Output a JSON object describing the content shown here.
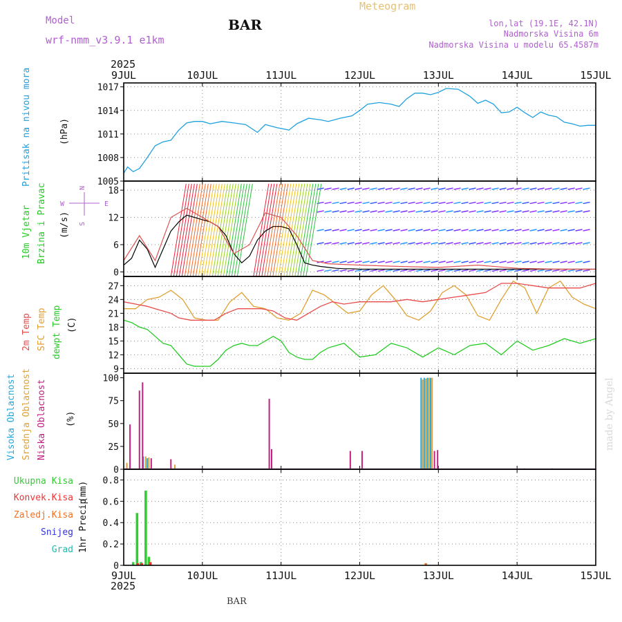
{
  "header": {
    "model_label": "Model",
    "model_name": "wrf-nmm_v3.9.1 e1km",
    "station": "BAR",
    "chart_title": "Meteogram",
    "lonlat": "lon,lat (19.1E, 42.1N)",
    "elevation": "Nadmorska Visina 6m",
    "model_elevation": "Nadmorska Visina u modelu 65.4587m",
    "footer_station": "BAR",
    "credit": "made by Angel"
  },
  "time_axis": {
    "year": "2025",
    "ticks": [
      "9JUL",
      "10JUL",
      "11JUL",
      "12JUL",
      "13JUL",
      "14JUL",
      "15JUL"
    ],
    "range_days": [
      0,
      6
    ]
  },
  "colors": {
    "pressure": "#1ea0e0",
    "wind_label": "#22cc22",
    "wind_speed": "#000000",
    "gust": "#e05050",
    "temp2m": "#e84a4a",
    "sfc": "#e0a030",
    "dewpt": "#22cc22",
    "high_cloud": "#20a8e0",
    "mid_cloud": "#e0a030",
    "low_cloud": "#c02080",
    "total_precip": "#33cc33",
    "conv_precip": "#ee3333",
    "frz_precip": "#f07020",
    "snow": "#3333dd",
    "hail": "#22bbaa",
    "dir_label": "#b060d0",
    "header_text": "#b060d0",
    "title_text": "#e8c070"
  },
  "chart_data": [
    {
      "type": "line",
      "panel": "pressure",
      "ylabel_main": "Pritisak na nivou mora",
      "ylabel_unit": "(hPa)",
      "ylim": [
        1005,
        1017.5
      ],
      "yticks": [
        1005,
        1008,
        1011,
        1014,
        1017
      ],
      "grid": true,
      "series": [
        {
          "x": [
            0,
            0.05,
            0.12,
            0.2,
            0.3,
            0.4,
            0.5,
            0.6,
            0.7,
            0.8,
            0.9,
            1.0,
            1.1,
            1.25,
            1.4,
            1.55,
            1.7,
            1.8,
            1.95,
            2.1,
            2.2,
            2.35,
            2.5,
            2.6,
            2.75,
            2.9,
            3.0,
            3.1,
            3.25,
            3.4,
            3.5,
            3.6,
            3.7,
            3.8,
            3.9,
            4.0,
            4.1,
            4.25,
            4.4,
            4.5,
            4.6,
            4.7,
            4.8,
            4.9,
            5.0,
            5.1,
            5.2,
            5.3,
            5.4,
            5.5,
            5.6,
            5.7,
            5.8,
            5.9,
            6.0
          ],
          "values": [
            1006.0,
            1006.8,
            1006.2,
            1006.6,
            1008.0,
            1009.5,
            1010.0,
            1010.2,
            1011.5,
            1012.4,
            1012.6,
            1012.6,
            1012.3,
            1012.6,
            1012.4,
            1012.2,
            1011.2,
            1012.2,
            1011.8,
            1011.5,
            1012.3,
            1013.0,
            1012.8,
            1012.6,
            1013.0,
            1013.3,
            1014.0,
            1014.8,
            1015.0,
            1014.8,
            1014.5,
            1015.5,
            1016.2,
            1016.2,
            1016.0,
            1016.3,
            1016.8,
            1016.7,
            1015.8,
            1014.9,
            1015.3,
            1014.8,
            1013.7,
            1013.8,
            1014.4,
            1013.7,
            1013.1,
            1013.8,
            1013.4,
            1013.2,
            1012.5,
            1012.3,
            1012.0,
            1012.1,
            1012.1
          ]
        }
      ]
    },
    {
      "type": "line",
      "panel": "wind",
      "ylabel_main": "10m Vjetar",
      "ylabel_sub": "Brzina i Pravac",
      "ylabel_unit": "(m/s)",
      "direction_labels": [
        "N",
        "E",
        "S",
        "W"
      ],
      "ylim": [
        -1,
        20
      ],
      "yticks": [
        0,
        6,
        12,
        18
      ],
      "grid": true,
      "series": [
        {
          "name": "speed",
          "x": [
            0,
            0.1,
            0.2,
            0.3,
            0.4,
            0.5,
            0.6,
            0.7,
            0.8,
            0.9,
            1.0,
            1.1,
            1.2,
            1.3,
            1.4,
            1.5,
            1.6,
            1.7,
            1.8,
            1.9,
            2.0,
            2.1,
            2.2,
            2.3,
            2.4,
            2.5,
            2.6,
            2.7,
            2.8,
            2.9,
            3.0,
            3.5,
            4.0,
            4.5,
            5.0,
            5.5,
            6.0
          ],
          "values": [
            1.5,
            3.0,
            7.0,
            5.0,
            1.0,
            5.0,
            9.0,
            11.0,
            12.5,
            12.0,
            11.5,
            11.0,
            10.0,
            8.0,
            4.0,
            2.0,
            3.5,
            7.0,
            9.0,
            10.0,
            10.0,
            9.5,
            6.0,
            2.0,
            1.5,
            1.2,
            1.0,
            0.8,
            0.7,
            0.7,
            0.6,
            0.6,
            0.6,
            0.6,
            0.6,
            0.6,
            0.6
          ]
        },
        {
          "name": "gust",
          "x": [
            0,
            0.2,
            0.4,
            0.6,
            0.8,
            1.0,
            1.2,
            1.4,
            1.6,
            1.8,
            2.0,
            2.2,
            2.4,
            2.6,
            3.0,
            3.5,
            4.0,
            4.5,
            5.0,
            5.5,
            6.0
          ],
          "values": [
            2.5,
            8.0,
            2.5,
            12.0,
            14.0,
            12.0,
            10.0,
            4.0,
            6.0,
            13.0,
            12.0,
            8.0,
            2.5,
            1.8,
            1.5,
            1.2,
            1.0,
            1.5,
            0.8,
            0.6,
            0.6
          ]
        }
      ]
    },
    {
      "type": "line",
      "panel": "temperature",
      "ylabels": [
        "2m Temp",
        "SFC Temp",
        "dewpt Temp"
      ],
      "ylabel_unit": "(C)",
      "ylim": [
        8,
        29
      ],
      "yticks": [
        9,
        12,
        15,
        18,
        21,
        24,
        27
      ],
      "grid": true,
      "series": [
        {
          "name": "2m",
          "x": [
            0,
            0.15,
            0.3,
            0.4,
            0.5,
            0.6,
            0.7,
            0.85,
            1.0,
            1.15,
            1.3,
            1.45,
            1.6,
            1.75,
            1.9,
            2.05,
            2.2,
            2.35,
            2.5,
            2.65,
            2.8,
            3.0,
            3.2,
            3.4,
            3.6,
            3.8,
            4.0,
            4.2,
            4.4,
            4.6,
            4.8,
            5.0,
            5.2,
            5.4,
            5.6,
            5.8,
            6.0
          ],
          "values": [
            23.5,
            23.0,
            22.5,
            22.0,
            21.5,
            21.0,
            20.0,
            19.5,
            19.5,
            19.5,
            21.0,
            22.0,
            22.0,
            22.0,
            21.5,
            20.0,
            19.5,
            21.0,
            22.5,
            23.5,
            23.0,
            23.5,
            23.5,
            23.5,
            24.0,
            23.5,
            24.0,
            24.5,
            25.0,
            25.5,
            27.5,
            27.5,
            27.0,
            26.5,
            26.5,
            26.5,
            27.5
          ]
        },
        {
          "name": "sfc",
          "x": [
            0,
            0.15,
            0.3,
            0.45,
            0.6,
            0.75,
            0.9,
            1.05,
            1.2,
            1.35,
            1.5,
            1.65,
            1.8,
            1.95,
            2.1,
            2.25,
            2.4,
            2.55,
            2.7,
            2.85,
            3.0,
            3.15,
            3.3,
            3.45,
            3.6,
            3.75,
            3.9,
            4.05,
            4.2,
            4.35,
            4.5,
            4.65,
            4.8,
            4.95,
            5.1,
            5.25,
            5.4,
            5.55,
            5.7,
            5.85,
            6.0
          ],
          "values": [
            22.0,
            22.0,
            24.0,
            24.5,
            26.0,
            24.0,
            20.0,
            19.5,
            19.5,
            23.5,
            25.5,
            22.5,
            22.0,
            20.0,
            19.5,
            21.0,
            26.0,
            25.0,
            23.0,
            21.0,
            21.5,
            25.0,
            27.0,
            24.0,
            20.5,
            19.5,
            21.5,
            25.5,
            27.0,
            25.0,
            20.5,
            19.5,
            24.0,
            28.0,
            26.5,
            21.0,
            26.5,
            28.0,
            24.5,
            23.0,
            22.0
          ]
        },
        {
          "name": "dewpt",
          "x": [
            0,
            0.1,
            0.2,
            0.3,
            0.4,
            0.5,
            0.6,
            0.7,
            0.8,
            0.9,
            1.0,
            1.1,
            1.2,
            1.3,
            1.4,
            1.5,
            1.6,
            1.7,
            1.8,
            1.9,
            2.0,
            2.1,
            2.2,
            2.3,
            2.4,
            2.5,
            2.6,
            2.7,
            2.8,
            2.9,
            3.0,
            3.2,
            3.4,
            3.6,
            3.8,
            4.0,
            4.2,
            4.4,
            4.6,
            4.8,
            5.0,
            5.2,
            5.4,
            5.6,
            5.8,
            6.0
          ],
          "values": [
            19.5,
            19.0,
            18.0,
            17.5,
            16.0,
            14.5,
            14.0,
            12.0,
            10.0,
            9.5,
            9.5,
            9.5,
            11.0,
            13.0,
            14.0,
            14.5,
            14.0,
            14.0,
            15.0,
            16.0,
            15.0,
            12.5,
            11.5,
            11.0,
            11.0,
            12.5,
            13.5,
            14.0,
            14.5,
            13.0,
            11.5,
            12.0,
            14.5,
            13.5,
            11.5,
            13.5,
            12.0,
            14.0,
            14.5,
            12.0,
            15.0,
            13.0,
            14.0,
            15.5,
            14.5,
            15.5
          ]
        }
      ]
    },
    {
      "type": "bar",
      "panel": "clouds",
      "ylabels": [
        "Visoka Oblacnost",
        "Srednja Oblacnost",
        "Niska Oblacnost"
      ],
      "ylabel_unit": "(%)",
      "ylim": [
        0,
        105
      ],
      "yticks": [
        0,
        25,
        50,
        75,
        100
      ],
      "series": [
        {
          "name": "Visoka",
          "x": [
            0.25,
            0.3,
            3.78,
            3.82,
            3.86,
            3.9,
            5.1,
            5.45
          ],
          "values": [
            14,
            12,
            100,
            100,
            100,
            100,
            1,
            1
          ]
        },
        {
          "name": "Srednja",
          "x": [
            0.04,
            0.28,
            0.32,
            0.65,
            3.8,
            3.84,
            3.88,
            3.92
          ],
          "values": [
            7,
            14,
            13,
            5,
            98,
            99,
            100,
            100
          ]
        },
        {
          "name": "Niska",
          "x": [
            0.08,
            0.2,
            0.24,
            0.35,
            0.6,
            1.85,
            1.88,
            2.88,
            3.03,
            3.95,
            3.99
          ],
          "values": [
            49,
            86,
            95,
            12,
            11,
            77,
            22,
            20,
            20,
            20,
            21
          ]
        }
      ]
    },
    {
      "type": "bar",
      "panel": "precip",
      "legend": [
        "Ukupna Kisa",
        "Konvek.Kisa",
        "Zaledj.Kisa",
        "Snijeg",
        "Grad"
      ],
      "ylabel_main": "1hr Precip",
      "ylabel_unit": "(mm)",
      "ylim": [
        0,
        0.9
      ],
      "yticks": [
        0,
        0.2,
        0.4,
        0.6,
        0.8
      ],
      "grid": true,
      "series": [
        {
          "name": "Ukupna Kisa",
          "x": [
            0.12,
            0.17,
            0.22,
            0.28,
            0.32
          ],
          "values": [
            0.03,
            0.49,
            0.03,
            0.7,
            0.08
          ]
        },
        {
          "name": "Konvek.Kisa",
          "x": [
            0.18,
            0.23,
            0.34
          ],
          "values": [
            0.02,
            0.02,
            0.03
          ]
        },
        {
          "name": "Zaledj.Kisa",
          "x": [
            3.84
          ],
          "values": [
            0.02
          ]
        }
      ]
    }
  ]
}
